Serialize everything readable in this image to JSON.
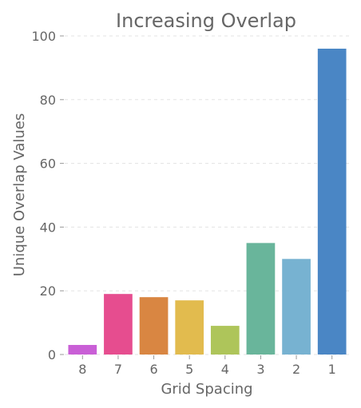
{
  "chart_data": {
    "type": "bar",
    "title": "Increasing Overlap",
    "xlabel": "Grid Spacing",
    "ylabel": "Unique Overlap Values",
    "categories": [
      "8",
      "7",
      "6",
      "5",
      "4",
      "3",
      "2",
      "1"
    ],
    "values": [
      3,
      19,
      18,
      17,
      9,
      35,
      30,
      96
    ],
    "colors": [
      "#c95fd6",
      "#e64d8f",
      "#d98642",
      "#e2bb4e",
      "#aec55a",
      "#69b59b",
      "#77b2d1",
      "#4a86c5"
    ],
    "ylim": [
      0,
      100
    ],
    "yticks": [
      0,
      20,
      40,
      60,
      80,
      100
    ],
    "grid": true,
    "legend": "none"
  }
}
